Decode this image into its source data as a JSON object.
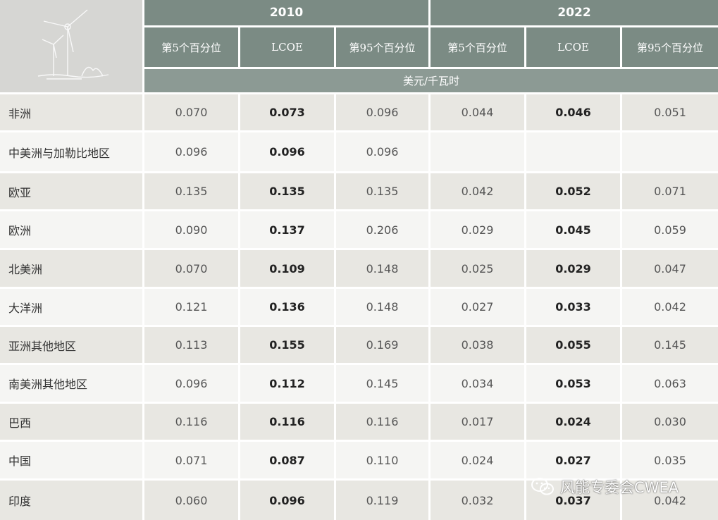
{
  "header": {
    "years": [
      "2010",
      "2022"
    ],
    "columns": [
      "第5个百分位",
      "LCOE",
      "第95个百分位",
      "第5个百分位",
      "LCOE",
      "第95个百分位"
    ],
    "unit": "美元/千瓦时"
  },
  "rows": [
    {
      "region": "非洲",
      "values": [
        "0.070",
        "0.073",
        "0.096",
        "0.044",
        "0.046",
        "0.051"
      ]
    },
    {
      "region": "中美洲与加勒比地区",
      "values": [
        "0.096",
        "0.096",
        "0.096",
        "",
        "",
        ""
      ]
    },
    {
      "region": "欧亚",
      "values": [
        "0.135",
        "0.135",
        "0.135",
        "0.042",
        "0.052",
        "0.071"
      ]
    },
    {
      "region": "欧洲",
      "values": [
        "0.090",
        "0.137",
        "0.206",
        "0.029",
        "0.045",
        "0.059"
      ]
    },
    {
      "region": "北美洲",
      "values": [
        "0.070",
        "0.109",
        "0.148",
        "0.025",
        "0.029",
        "0.047"
      ]
    },
    {
      "region": "大洋洲",
      "values": [
        "0.121",
        "0.136",
        "0.148",
        "0.027",
        "0.033",
        "0.042"
      ]
    },
    {
      "region": "亚洲其他地区",
      "values": [
        "0.113",
        "0.155",
        "0.169",
        "0.038",
        "0.055",
        "0.145"
      ]
    },
    {
      "region": "南美洲其他地区",
      "values": [
        "0.096",
        "0.112",
        "0.145",
        "0.034",
        "0.053",
        "0.063"
      ]
    },
    {
      "region": "巴西",
      "values": [
        "0.116",
        "0.116",
        "0.116",
        "0.017",
        "0.024",
        "0.030"
      ]
    },
    {
      "region": "中国",
      "values": [
        "0.071",
        "0.087",
        "0.110",
        "0.024",
        "0.027",
        "0.035"
      ]
    },
    {
      "region": "印度",
      "values": [
        "0.060",
        "0.096",
        "0.119",
        "0.032",
        "0.037",
        "0.042"
      ]
    }
  ],
  "watermark": {
    "text": "风能专委会CWEA",
    "icon": "wechat-icon"
  },
  "logo": {
    "icon": "wind-turbine-icon"
  }
}
